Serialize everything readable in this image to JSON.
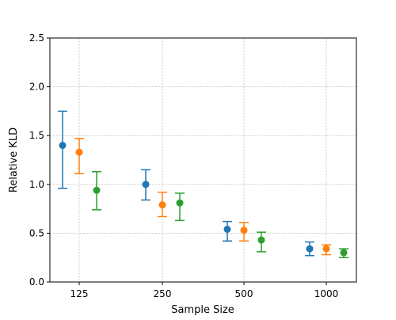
{
  "chart_data": {
    "type": "scatter",
    "title": "",
    "xlabel": "Sample Size",
    "ylabel": "Relative KLD",
    "categories": [
      "125",
      "250",
      "500",
      "1000"
    ],
    "ylim": [
      0.0,
      2.5
    ],
    "yticks": [
      "0.0",
      "0.5",
      "1.0",
      "1.5",
      "2.0",
      "2.5"
    ],
    "grid": true,
    "legend": "none",
    "series": [
      {
        "color": "#1f77b4",
        "values": [
          1.4,
          1.0,
          0.54,
          0.34
        ],
        "err_low": [
          0.96,
          0.84,
          0.42,
          0.27
        ],
        "err_high": [
          1.75,
          1.15,
          0.62,
          0.41
        ]
      },
      {
        "color": "#ff7f0e",
        "values": [
          1.33,
          0.79,
          0.53,
          0.34
        ],
        "err_low": [
          1.11,
          0.67,
          0.42,
          0.28
        ],
        "err_high": [
          1.47,
          0.92,
          0.61,
          0.38
        ]
      },
      {
        "color": "#2ca02c",
        "values": [
          0.94,
          0.81,
          0.43,
          0.3
        ],
        "err_low": [
          0.74,
          0.63,
          0.31,
          0.25
        ],
        "err_high": [
          1.13,
          0.91,
          0.51,
          0.34
        ]
      }
    ]
  }
}
